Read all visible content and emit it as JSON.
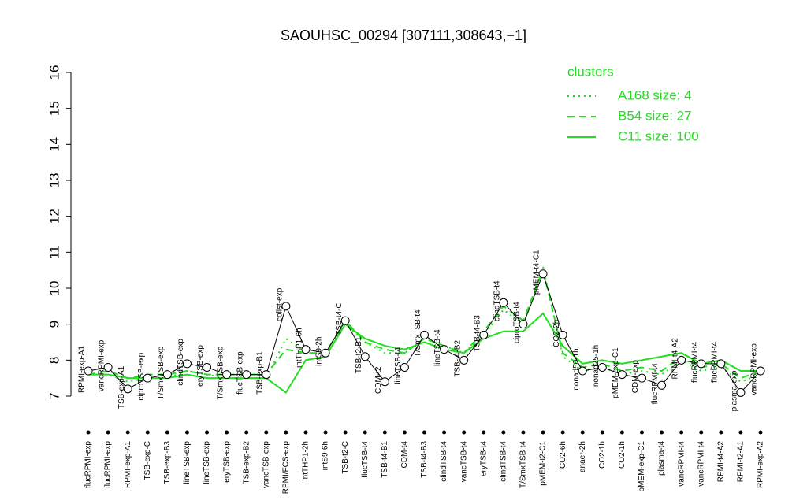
{
  "chart_data": {
    "type": "line",
    "title": "SAOUHSC_00294 [307111,308643,−1]",
    "categories": [
      "flucRPMI-exp",
      "flucRPMI-exp",
      "RPMI-exp-A1",
      "TSB-exp-C",
      "TSB-exp-B3",
      "lineTSB-exp",
      "lineTSB-exp",
      "eryTSB-exp",
      "TSB-exp-B2",
      "vancTSB-exp",
      "RPMI/FCS-exp",
      "intTHP1-2h",
      "intS9-6h",
      "TSB-t2-C",
      "flucTSB-t4",
      "TSB-t4-B1",
      "CDM-t4",
      "TSB-t4-B3",
      "clindTSB-t4",
      "vancTSB-t4",
      "eryTSB-t4",
      "clindTSB-t4",
      "T/SmxTSB-t4",
      "pMEM-t2-C1",
      "CO2-6h",
      "anaer-2h",
      "CO2-1h",
      "CO2-1h",
      "pMEM-exp-C1",
      "plasma-t4",
      "vancRPMI-t4",
      "vancRPMI-t4",
      "RPMI-t4-A2",
      "RPMI-t2-A1",
      "RPMI-exp-A2"
    ],
    "point_labels": [
      "RPMI-exp-A1",
      "vancRPMI-exp",
      "TSB-exp-A1",
      "ciproTSB-exp",
      "T/SmxTSB-exp",
      "clindTSB-exp",
      "eryTSB-exp",
      "T/SmxTSB-exp",
      "flucTSB-exp",
      "TSB-exp-B1",
      "colist-exp",
      "intTHP1-6h",
      "intS9-2h",
      "TSB-t4-C",
      "TSB-t2-B1",
      "CDM-t2",
      "lineTSB-t4",
      "T/SmxTSB-t4",
      "lineTSB-t4",
      "TSB-t4-B2",
      "TSB-t4-B3",
      "clindTSB-t4",
      "ciproTSB-t4",
      "pMEM-t4-C1",
      "CO2-2h",
      "nonad50-1h",
      "nonad25-1h",
      "pMEM-exp-C1",
      "CDM-exp",
      "flucRPMI-t4",
      "RPMI-t4-A2",
      "flucRPMI-t4",
      "flucRPMI-t4",
      "plasma-exp",
      "vancRPMI-exp"
    ],
    "values": [
      7.7,
      7.8,
      7.2,
      7.5,
      7.6,
      7.9,
      7.8,
      7.6,
      7.6,
      7.6,
      9.5,
      8.3,
      8.2,
      9.1,
      8.1,
      7.4,
      7.8,
      8.7,
      8.3,
      8.0,
      8.7,
      9.6,
      9.0,
      10.4,
      8.7,
      7.7,
      7.8,
      7.6,
      7.5,
      7.3,
      8.0,
      7.9,
      7.9,
      7.1,
      7.7
    ],
    "color": "#000000",
    "ylim": [
      7,
      16
    ],
    "yticks": [
      7,
      8,
      9,
      10,
      11,
      12,
      13,
      14,
      15,
      16
    ],
    "legend_title": "clusters",
    "legend_position": "top-right",
    "series": [
      {
        "name": "A168 size: 4",
        "color": "#22dd22",
        "line_style": "dotted",
        "values": [
          7.6,
          7.6,
          7.4,
          7.5,
          7.5,
          7.7,
          7.6,
          7.5,
          7.5,
          7.5,
          8.6,
          8.2,
          8.2,
          9.0,
          8.5,
          8.2,
          8.2,
          8.6,
          8.4,
          8.2,
          8.7,
          9.4,
          9.0,
          10.6,
          8.1,
          7.7,
          7.8,
          7.6,
          7.7,
          7.6,
          8.0,
          7.7,
          7.8,
          7.4,
          7.6
        ]
      },
      {
        "name": "B54 size: 27",
        "color": "#22dd22",
        "line_style": "dashed",
        "values": [
          7.6,
          7.7,
          7.5,
          7.6,
          7.6,
          7.7,
          7.6,
          7.6,
          7.6,
          7.6,
          8.3,
          8.2,
          8.2,
          9.1,
          8.5,
          8.3,
          8.2,
          8.6,
          8.4,
          8.2,
          8.8,
          9.5,
          9.1,
          10.5,
          8.2,
          7.8,
          7.9,
          7.7,
          7.8,
          7.7,
          8.1,
          7.8,
          7.9,
          7.5,
          7.7
        ]
      },
      {
        "name": "C11 size: 100",
        "color": "#22dd22",
        "line_style": "solid",
        "values": [
          7.6,
          7.6,
          7.5,
          7.5,
          7.5,
          7.6,
          7.5,
          7.5,
          7.5,
          7.5,
          7.1,
          8.0,
          8.1,
          9.0,
          8.6,
          8.4,
          8.3,
          8.5,
          8.3,
          8.2,
          8.6,
          8.8,
          8.8,
          9.3,
          8.4,
          7.9,
          8.0,
          7.9,
          8.0,
          8.1,
          8.2,
          7.9,
          8.0,
          7.7,
          7.7
        ]
      }
    ]
  }
}
